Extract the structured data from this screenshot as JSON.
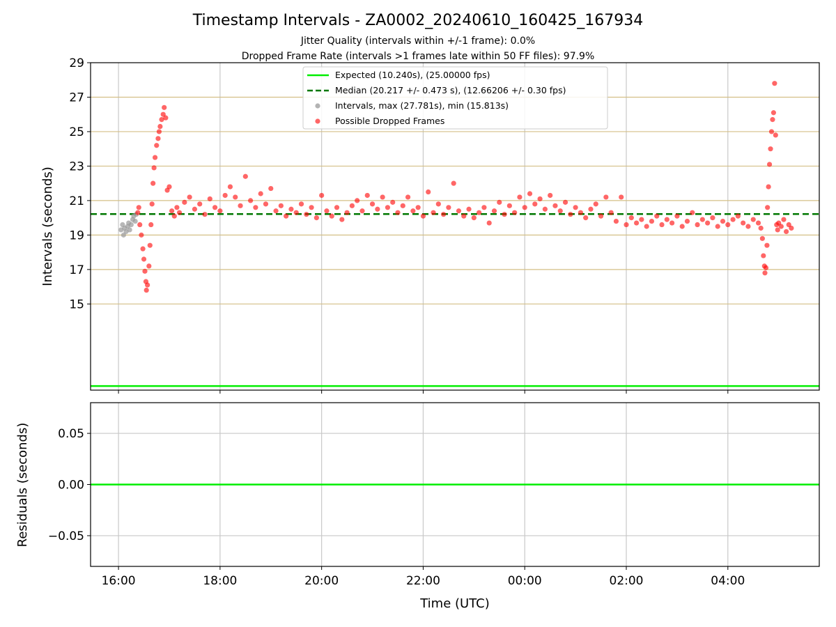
{
  "chart_data": [
    {
      "type": "scatter",
      "title": "Timestamp Intervals - ZA0002_20240610_160425_167934",
      "subtitle_lines": [
        "Jitter Quality (intervals within +/-1 frame): 0.0%",
        "Dropped Frame Rate (intervals >1 frames late within 50 FF files): 97.9%"
      ],
      "xlabel": "",
      "ylabel": "Intervals (seconds)",
      "xlim_hours": [
        15.45,
        29.8
      ],
      "ylim": [
        10.0,
        29.0
      ],
      "x_ticks": [
        {
          "hour": 16,
          "label": "16:00"
        },
        {
          "hour": 18,
          "label": "18:00"
        },
        {
          "hour": 20,
          "label": "20:00"
        },
        {
          "hour": 22,
          "label": "22:00"
        },
        {
          "hour": 24,
          "label": "00:00"
        },
        {
          "hour": 26,
          "label": "02:00"
        },
        {
          "hour": 28,
          "label": "04:00"
        }
      ],
      "y_ticks": [
        15,
        17,
        19,
        21,
        23,
        25,
        27,
        29
      ],
      "grid": true,
      "legend_position": "top-center",
      "legend": [
        "Expected (10.240s), (25.00000 fps)",
        "Median (20.217 +/- 0.473 s), (12.66206 +/- 0.30 fps)",
        "Intervals, max (27.781s), min (15.813s)",
        "Possible Dropped Frames"
      ],
      "expected_line": {
        "value": 10.24,
        "color": "#00ee00"
      },
      "median_line": {
        "value": 20.217,
        "color": "#007700"
      },
      "series": [
        {
          "name": "Intervals, max (27.781s), min (15.813s)",
          "color": "#999999",
          "points": [
            [
              16.05,
              19.3
            ],
            [
              16.08,
              19.6
            ],
            [
              16.1,
              19.0
            ],
            [
              16.12,
              19.4
            ],
            [
              16.15,
              19.2
            ],
            [
              16.18,
              19.5
            ],
            [
              16.2,
              19.7
            ],
            [
              16.22,
              19.3
            ],
            [
              16.25,
              19.6
            ],
            [
              16.28,
              19.9
            ],
            [
              16.3,
              20.1
            ],
            [
              16.33,
              19.8
            ],
            [
              16.35,
              20.2
            ]
          ]
        },
        {
          "name": "Possible Dropped Frames",
          "color": "#ff0000",
          "points": [
            [
              16.38,
              20.3
            ],
            [
              16.4,
              20.6
            ],
            [
              16.42,
              19.6
            ],
            [
              16.45,
              19.0
            ],
            [
              16.48,
              18.2
            ],
            [
              16.5,
              17.6
            ],
            [
              16.52,
              16.9
            ],
            [
              16.54,
              16.3
            ],
            [
              16.55,
              15.8
            ],
            [
              16.57,
              16.1
            ],
            [
              16.6,
              17.2
            ],
            [
              16.62,
              18.4
            ],
            [
              16.64,
              19.6
            ],
            [
              16.66,
              20.8
            ],
            [
              16.68,
              22.0
            ],
            [
              16.7,
              22.9
            ],
            [
              16.72,
              23.5
            ],
            [
              16.75,
              24.2
            ],
            [
              16.78,
              24.6
            ],
            [
              16.8,
              25.0
            ],
            [
              16.82,
              25.3
            ],
            [
              16.85,
              25.7
            ],
            [
              16.88,
              26.0
            ],
            [
              16.9,
              26.4
            ],
            [
              16.93,
              25.8
            ],
            [
              16.96,
              21.6
            ],
            [
              17.0,
              21.8
            ],
            [
              17.05,
              20.4
            ],
            [
              17.1,
              20.1
            ],
            [
              17.15,
              20.6
            ],
            [
              17.2,
              20.3
            ],
            [
              17.3,
              20.9
            ],
            [
              17.4,
              21.2
            ],
            [
              17.5,
              20.5
            ],
            [
              17.6,
              20.8
            ],
            [
              17.7,
              20.2
            ],
            [
              17.8,
              21.1
            ],
            [
              17.9,
              20.6
            ],
            [
              18.0,
              20.4
            ],
            [
              18.1,
              21.3
            ],
            [
              18.2,
              21.8
            ],
            [
              18.3,
              21.2
            ],
            [
              18.4,
              20.7
            ],
            [
              18.5,
              22.4
            ],
            [
              18.6,
              21.0
            ],
            [
              18.7,
              20.6
            ],
            [
              18.8,
              21.4
            ],
            [
              18.9,
              20.8
            ],
            [
              19.0,
              21.7
            ],
            [
              19.1,
              20.4
            ],
            [
              19.2,
              20.7
            ],
            [
              19.3,
              20.1
            ],
            [
              19.4,
              20.5
            ],
            [
              19.5,
              20.3
            ],
            [
              19.6,
              20.8
            ],
            [
              19.7,
              20.2
            ],
            [
              19.8,
              20.6
            ],
            [
              19.9,
              20.0
            ],
            [
              20.0,
              21.3
            ],
            [
              20.1,
              20.4
            ],
            [
              20.2,
              20.1
            ],
            [
              20.3,
              20.6
            ],
            [
              20.4,
              19.9
            ],
            [
              20.5,
              20.3
            ],
            [
              20.6,
              20.7
            ],
            [
              20.7,
              21.0
            ],
            [
              20.8,
              20.4
            ],
            [
              20.9,
              21.3
            ],
            [
              21.0,
              20.8
            ],
            [
              21.1,
              20.5
            ],
            [
              21.2,
              21.2
            ],
            [
              21.3,
              20.6
            ],
            [
              21.4,
              20.9
            ],
            [
              21.5,
              20.3
            ],
            [
              21.6,
              20.7
            ],
            [
              21.7,
              21.2
            ],
            [
              21.8,
              20.4
            ],
            [
              21.9,
              20.6
            ],
            [
              22.0,
              20.1
            ],
            [
              22.1,
              21.5
            ],
            [
              22.2,
              20.3
            ],
            [
              22.3,
              20.8
            ],
            [
              22.4,
              20.2
            ],
            [
              22.5,
              20.6
            ],
            [
              22.6,
              22.0
            ],
            [
              22.7,
              20.4
            ],
            [
              22.8,
              20.1
            ],
            [
              22.9,
              20.5
            ],
            [
              23.0,
              20.0
            ],
            [
              23.1,
              20.3
            ],
            [
              23.2,
              20.6
            ],
            [
              23.3,
              19.7
            ],
            [
              23.4,
              20.4
            ],
            [
              23.5,
              20.9
            ],
            [
              23.6,
              20.2
            ],
            [
              23.7,
              20.7
            ],
            [
              23.8,
              20.3
            ],
            [
              23.9,
              21.2
            ],
            [
              24.0,
              20.6
            ],
            [
              24.1,
              21.4
            ],
            [
              24.2,
              20.8
            ],
            [
              24.3,
              21.1
            ],
            [
              24.4,
              20.5
            ],
            [
              24.5,
              21.3
            ],
            [
              24.6,
              20.7
            ],
            [
              24.7,
              20.4
            ],
            [
              24.8,
              20.9
            ],
            [
              24.9,
              20.2
            ],
            [
              25.0,
              20.6
            ],
            [
              25.1,
              20.3
            ],
            [
              25.2,
              20.0
            ],
            [
              25.3,
              20.5
            ],
            [
              25.4,
              20.8
            ],
            [
              25.5,
              20.1
            ],
            [
              25.6,
              21.2
            ],
            [
              25.7,
              20.3
            ],
            [
              25.8,
              19.8
            ],
            [
              25.9,
              21.2
            ],
            [
              26.0,
              19.6
            ],
            [
              26.1,
              20.0
            ],
            [
              26.2,
              19.7
            ],
            [
              26.3,
              19.9
            ],
            [
              26.4,
              19.5
            ],
            [
              26.5,
              19.8
            ],
            [
              26.6,
              20.1
            ],
            [
              26.7,
              19.6
            ],
            [
              26.8,
              19.9
            ],
            [
              26.9,
              19.7
            ],
            [
              27.0,
              20.1
            ],
            [
              27.1,
              19.5
            ],
            [
              27.2,
              19.8
            ],
            [
              27.3,
              20.3
            ],
            [
              27.4,
              19.6
            ],
            [
              27.5,
              19.9
            ],
            [
              27.6,
              19.7
            ],
            [
              27.7,
              20.0
            ],
            [
              27.8,
              19.5
            ],
            [
              27.9,
              19.8
            ],
            [
              28.0,
              19.6
            ],
            [
              28.1,
              19.9
            ],
            [
              28.2,
              20.1
            ],
            [
              28.3,
              19.7
            ],
            [
              28.4,
              19.5
            ],
            [
              28.5,
              19.9
            ],
            [
              28.6,
              19.7
            ],
            [
              28.65,
              19.4
            ],
            [
              28.68,
              18.8
            ],
            [
              28.7,
              17.8
            ],
            [
              28.72,
              17.2
            ],
            [
              28.73,
              16.8
            ],
            [
              28.75,
              17.1
            ],
            [
              28.77,
              18.4
            ],
            [
              28.78,
              20.6
            ],
            [
              28.8,
              21.8
            ],
            [
              28.82,
              23.1
            ],
            [
              28.84,
              24.0
            ],
            [
              28.86,
              25.0
            ],
            [
              28.88,
              25.7
            ],
            [
              28.9,
              26.1
            ],
            [
              28.92,
              27.8
            ],
            [
              28.94,
              24.8
            ],
            [
              28.96,
              19.6
            ],
            [
              28.98,
              19.3
            ],
            [
              29.0,
              19.7
            ],
            [
              29.05,
              19.5
            ],
            [
              29.1,
              19.9
            ],
            [
              29.15,
              19.2
            ],
            [
              29.2,
              19.6
            ],
            [
              29.25,
              19.4
            ]
          ]
        }
      ]
    },
    {
      "type": "line",
      "title": "",
      "xlabel": "Time (UTC)",
      "ylabel": "Residuals (seconds)",
      "xlim_hours": [
        15.45,
        29.8
      ],
      "ylim": [
        -0.08,
        0.08
      ],
      "y_ticks": [
        {
          "value": 0.05,
          "label": "0.05"
        },
        {
          "value": 0.0,
          "label": "0.00"
        },
        {
          "value": -0.05,
          "label": "−0.05"
        }
      ],
      "grid": true,
      "zero_line": {
        "value": 0.0,
        "color": "#00ee00"
      }
    }
  ]
}
